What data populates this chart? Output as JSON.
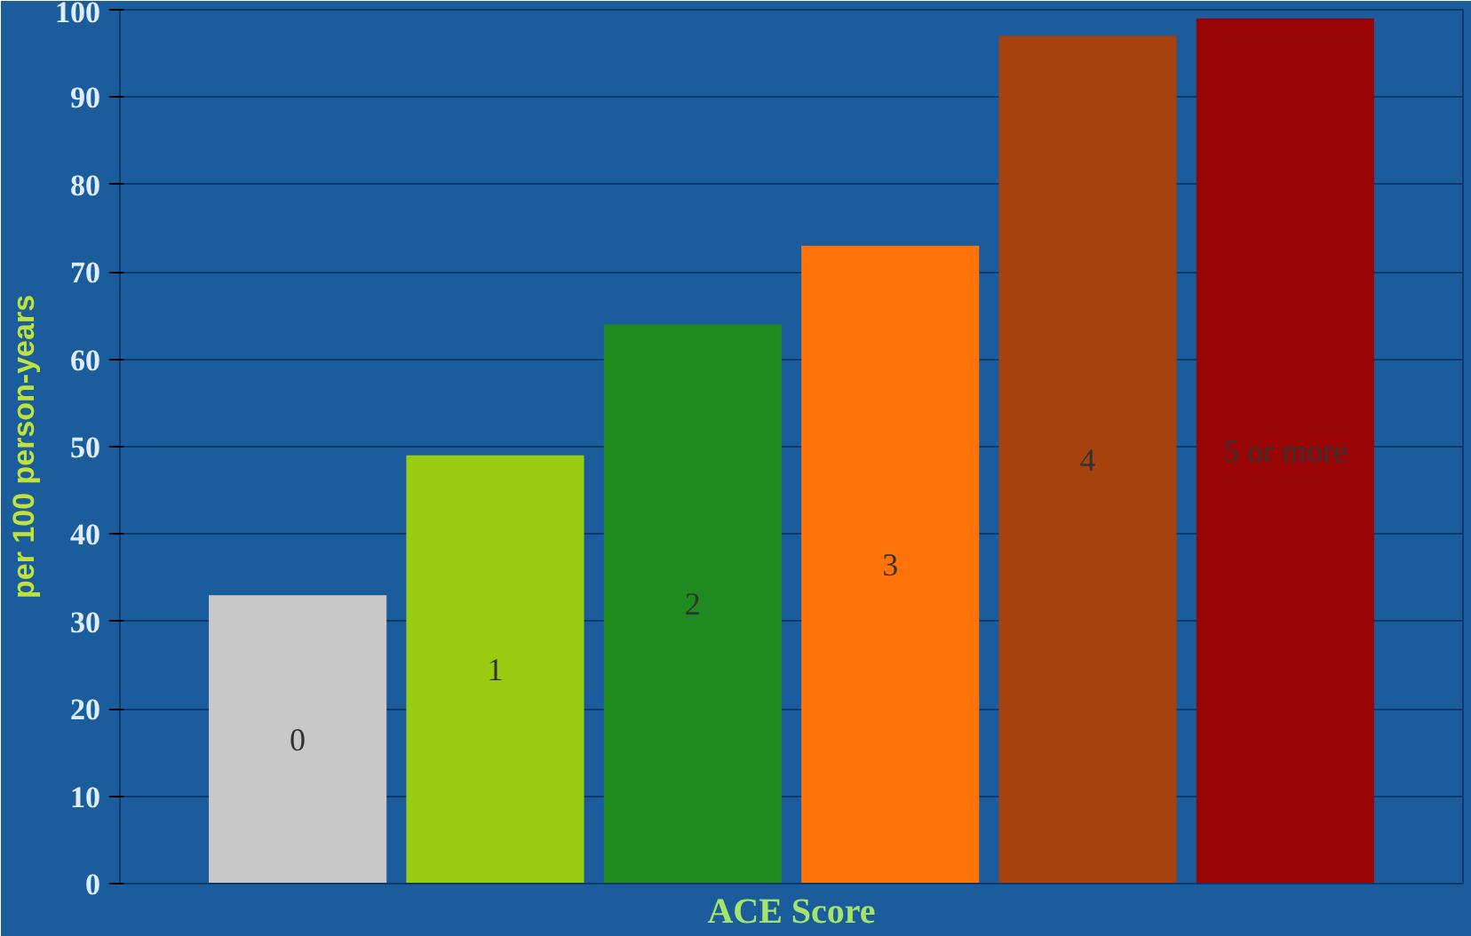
{
  "chart_data": {
    "type": "bar",
    "categories": [
      "0",
      "1",
      "2",
      "3",
      "4",
      "5 or more"
    ],
    "values": [
      33,
      49,
      64,
      73,
      97,
      99
    ],
    "colors": [
      "#c8c8c8",
      "#99cc11",
      "#1f8a1f",
      "#ff7308",
      "#a8420c",
      "#990505"
    ],
    "xlabel": "ACE Score",
    "ylabel": "per 100 person-years",
    "ylim": [
      0,
      100
    ],
    "yticks": [
      0,
      10,
      20,
      30,
      40,
      50,
      60,
      70,
      80,
      90,
      100
    ],
    "grid": "y",
    "tick_labels": "y"
  }
}
